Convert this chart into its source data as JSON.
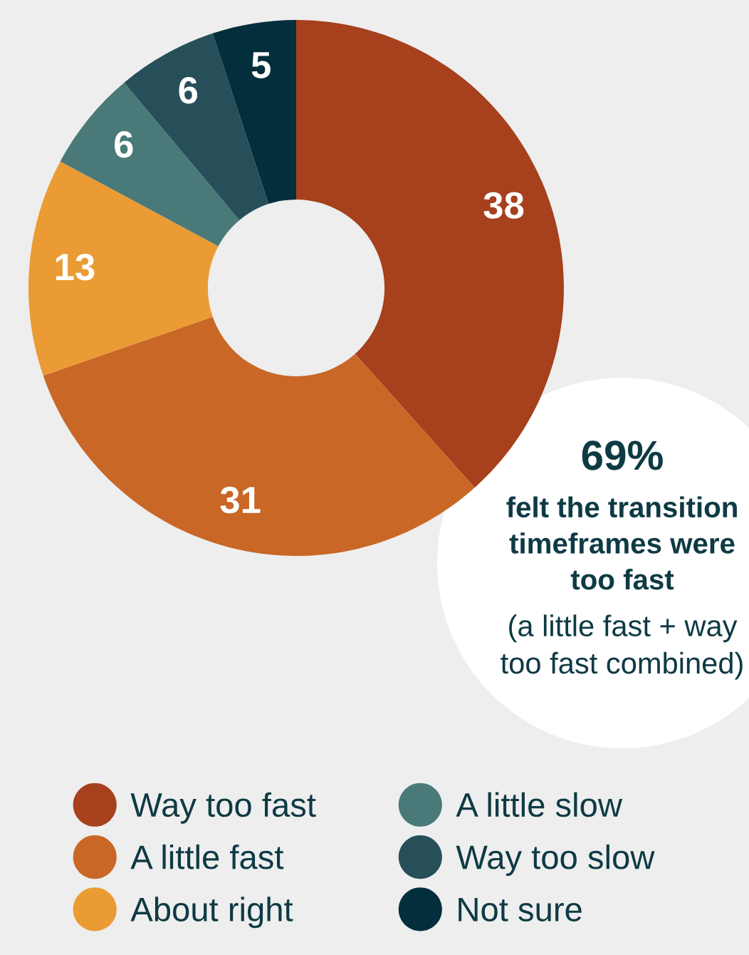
{
  "chart_data": {
    "type": "donut",
    "categories": [
      "Way too fast",
      "A little fast",
      "About right",
      "A little slow",
      "Way too slow",
      "Not sure"
    ],
    "values": [
      38,
      31,
      13,
      6,
      6,
      5
    ],
    "colors": [
      "#a6401d",
      "#c96726",
      "#eb9b34",
      "#4a7979",
      "#264f5a",
      "#032f3c"
    ],
    "data_labels": true,
    "legend": "bottom",
    "annotations": [
      "69%",
      "felt the transition timeframes were too fast",
      "(a little fast + way too fast combined)"
    ]
  }
}
